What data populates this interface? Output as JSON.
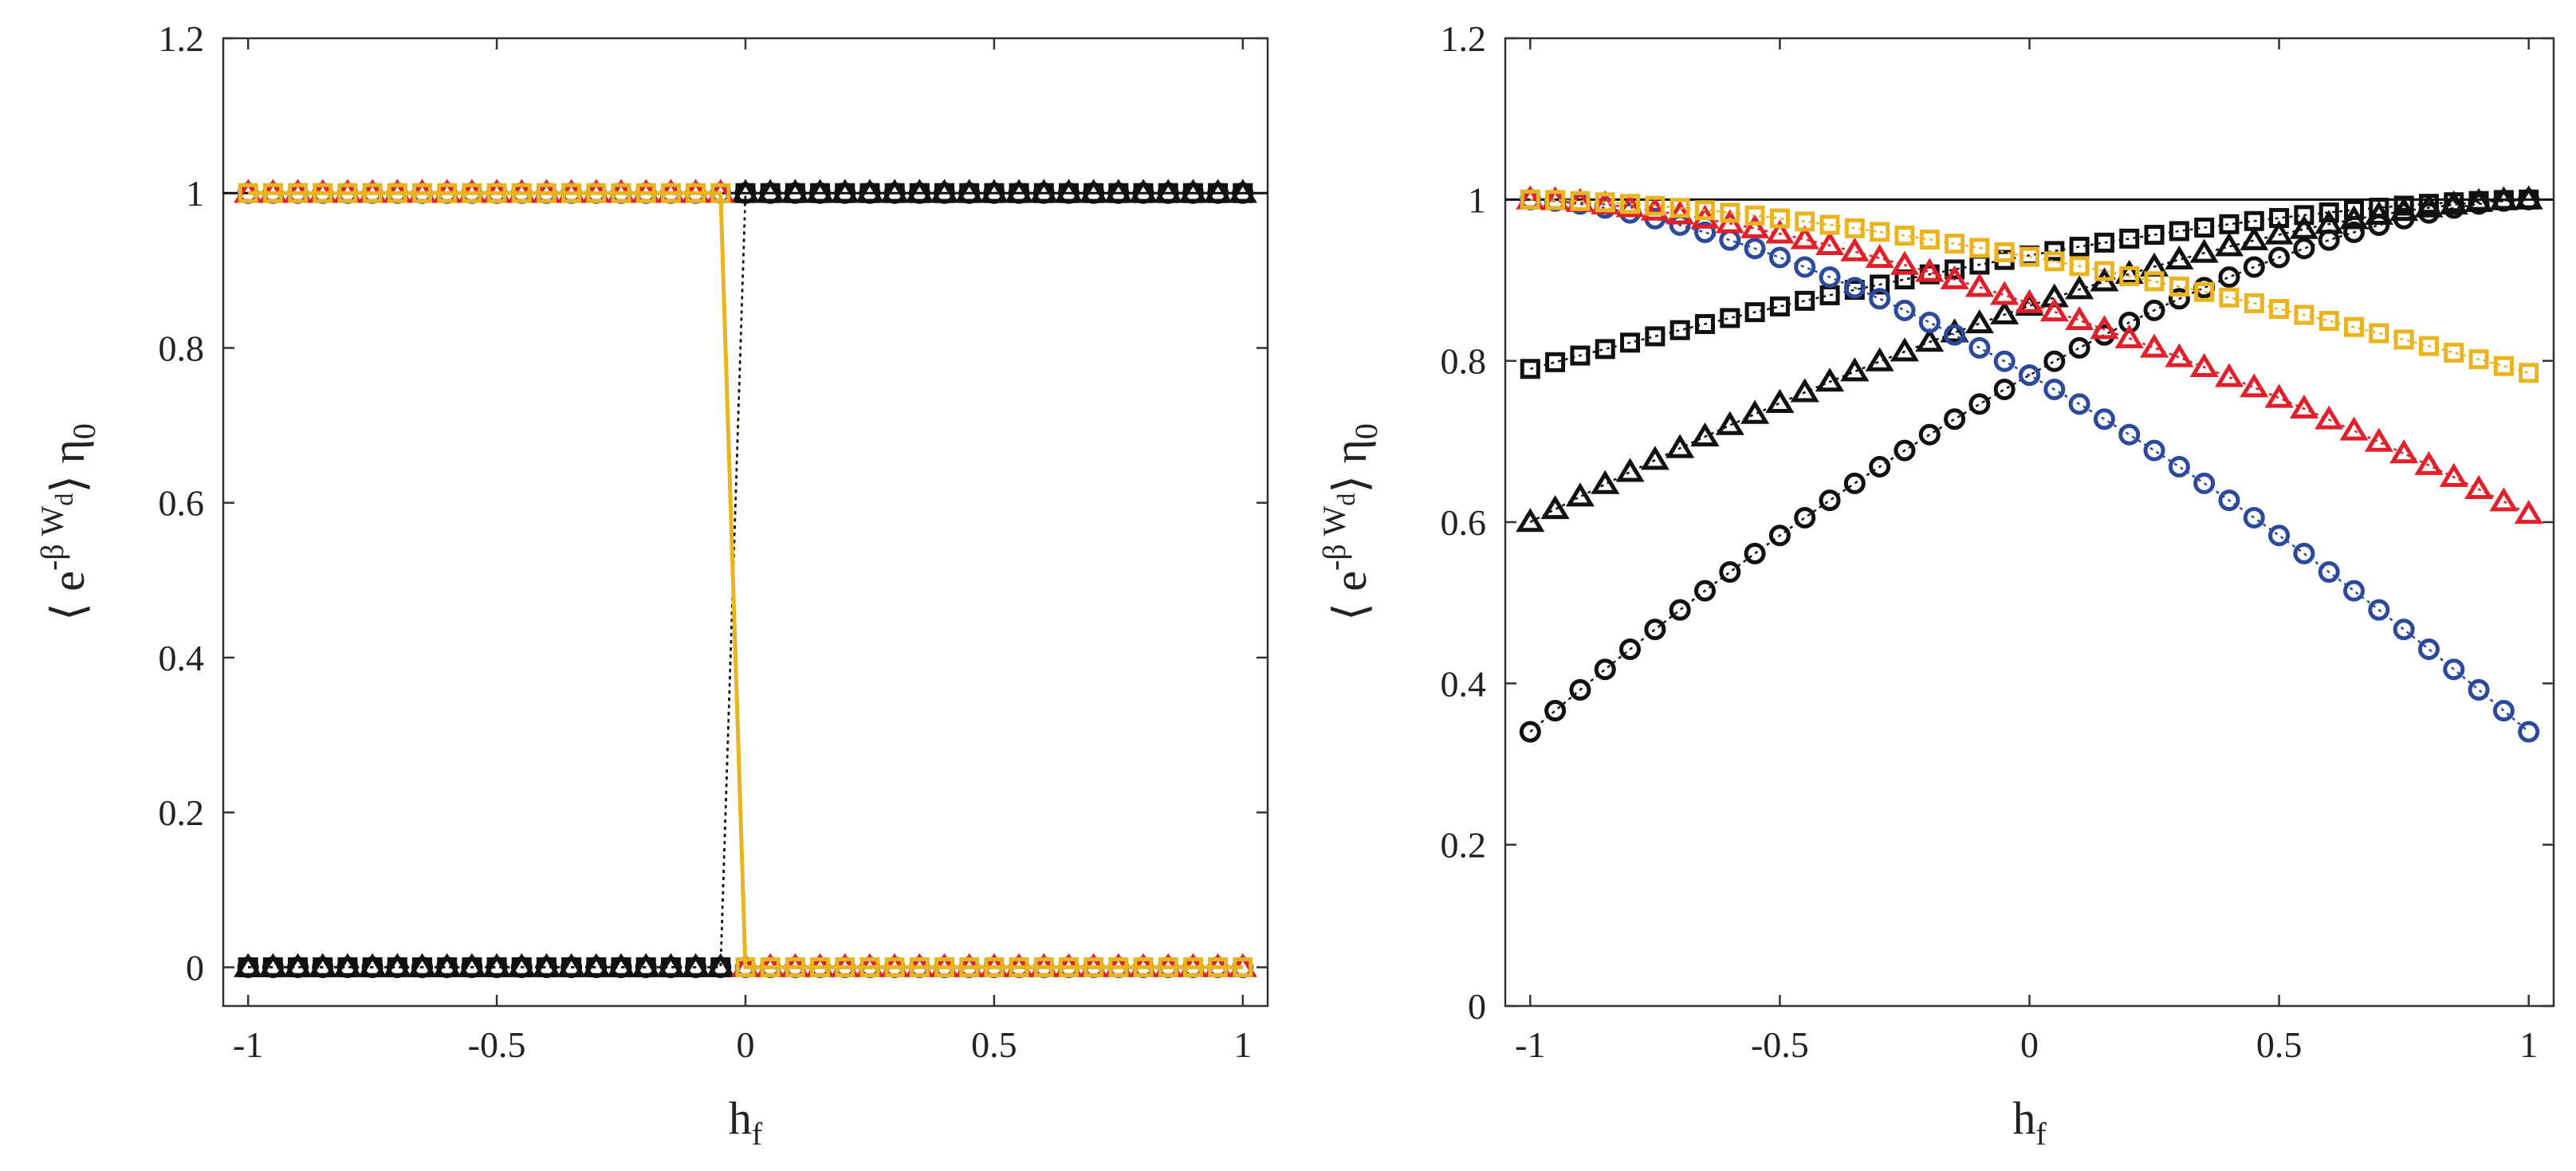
{
  "chart_data": [
    {
      "type": "line",
      "panel": "left",
      "xlabel": "h",
      "xlabel_sub": "f",
      "ylabel_main": "⟨ e",
      "ylabel_sup": "-β W",
      "ylabel_supsub": "d",
      "ylabel_close": "⟩ η",
      "ylabel_sub": "0",
      "xlim": [
        -1.05,
        1.05
      ],
      "ylim": [
        -0.05,
        1.2
      ],
      "xticks": [
        -1,
        -0.5,
        0,
        0.5,
        1
      ],
      "xtick_labels": [
        "-1",
        "-0.5",
        "0",
        "0.5",
        "1"
      ],
      "yticks": [
        0,
        0.2,
        0.4,
        0.6,
        0.8,
        1,
        1.2
      ],
      "ytick_labels": [
        "0",
        "0.2",
        "0.4",
        "0.6",
        "0.8",
        "1",
        "1.2"
      ],
      "grid": false,
      "legend": "none",
      "reference_line": 1,
      "series": [
        {
          "name": "black-circle-a",
          "marker": "circle",
          "color": "#111111",
          "line": "dotted",
          "step_at": 0.0,
          "before": 0,
          "after": 1
        },
        {
          "name": "black-triangle-a",
          "marker": "triangle",
          "color": "#111111",
          "line": "dotted",
          "step_at": 0.0,
          "before": 0,
          "after": 1
        },
        {
          "name": "black-square-a",
          "marker": "square",
          "color": "#111111",
          "line": "dotted",
          "step_at": 0.0,
          "before": 0,
          "after": 1
        },
        {
          "name": "blue-circle-a",
          "marker": "circle",
          "color": "#2b4a9b",
          "line": "dotted",
          "step_at": 0.0,
          "before": 1,
          "after": 0
        },
        {
          "name": "red-triangle-a",
          "marker": "triangle",
          "color": "#e0202a",
          "line": "dotted",
          "step_at": 0.0,
          "before": 1,
          "after": 0
        },
        {
          "name": "yellow-square-a",
          "marker": "square",
          "color": "#eab420",
          "line": "solid",
          "step_at": 0.0,
          "before": 1,
          "after": 0
        }
      ]
    },
    {
      "type": "line",
      "panel": "right",
      "xlabel": "h",
      "xlabel_sub": "f",
      "ylabel_main": "⟨ e",
      "ylabel_sup": "-β W",
      "ylabel_supsub": "d",
      "ylabel_close": "⟩ η",
      "ylabel_sub": "0",
      "xlim": [
        -1.05,
        1.05
      ],
      "ylim": [
        0,
        1.2
      ],
      "xticks": [
        -1,
        -0.5,
        0,
        0.5,
        1
      ],
      "xtick_labels": [
        "-1",
        "-0.5",
        "0",
        "0.5",
        "1"
      ],
      "yticks": [
        0,
        0.2,
        0.4,
        0.6,
        0.8,
        1,
        1.2
      ],
      "ytick_labels": [
        "0",
        "0.2",
        "0.4",
        "0.6",
        "0.8",
        "1",
        "1.2"
      ],
      "grid": false,
      "legend": "none",
      "reference_line": 1,
      "series": [
        {
          "name": "black-circle-b",
          "marker": "circle",
          "color": "#111111",
          "line": "dotted",
          "y_at_minus1": 0.34,
          "y_at_plus1": 1.0
        },
        {
          "name": "black-triangle-b",
          "marker": "triangle",
          "color": "#111111",
          "line": "dotted",
          "y_at_minus1": 0.6,
          "y_at_plus1": 1.0
        },
        {
          "name": "black-square-b",
          "marker": "square",
          "color": "#111111",
          "line": "dotted",
          "y_at_minus1": 0.79,
          "y_at_plus1": 1.0
        },
        {
          "name": "blue-circle-b",
          "marker": "circle",
          "color": "#2b4a9b",
          "line": "dotted",
          "y_at_minus1": 1.0,
          "y_at_plus1": 0.34
        },
        {
          "name": "red-triangle-b",
          "marker": "triangle",
          "color": "#e0202a",
          "line": "dotted",
          "y_at_minus1": 1.0,
          "y_at_plus1": 0.61
        },
        {
          "name": "yellow-square-b",
          "marker": "square",
          "color": "#eab420",
          "line": "dotted",
          "y_at_minus1": 1.0,
          "y_at_plus1": 0.785
        }
      ],
      "n_points": 41
    }
  ]
}
